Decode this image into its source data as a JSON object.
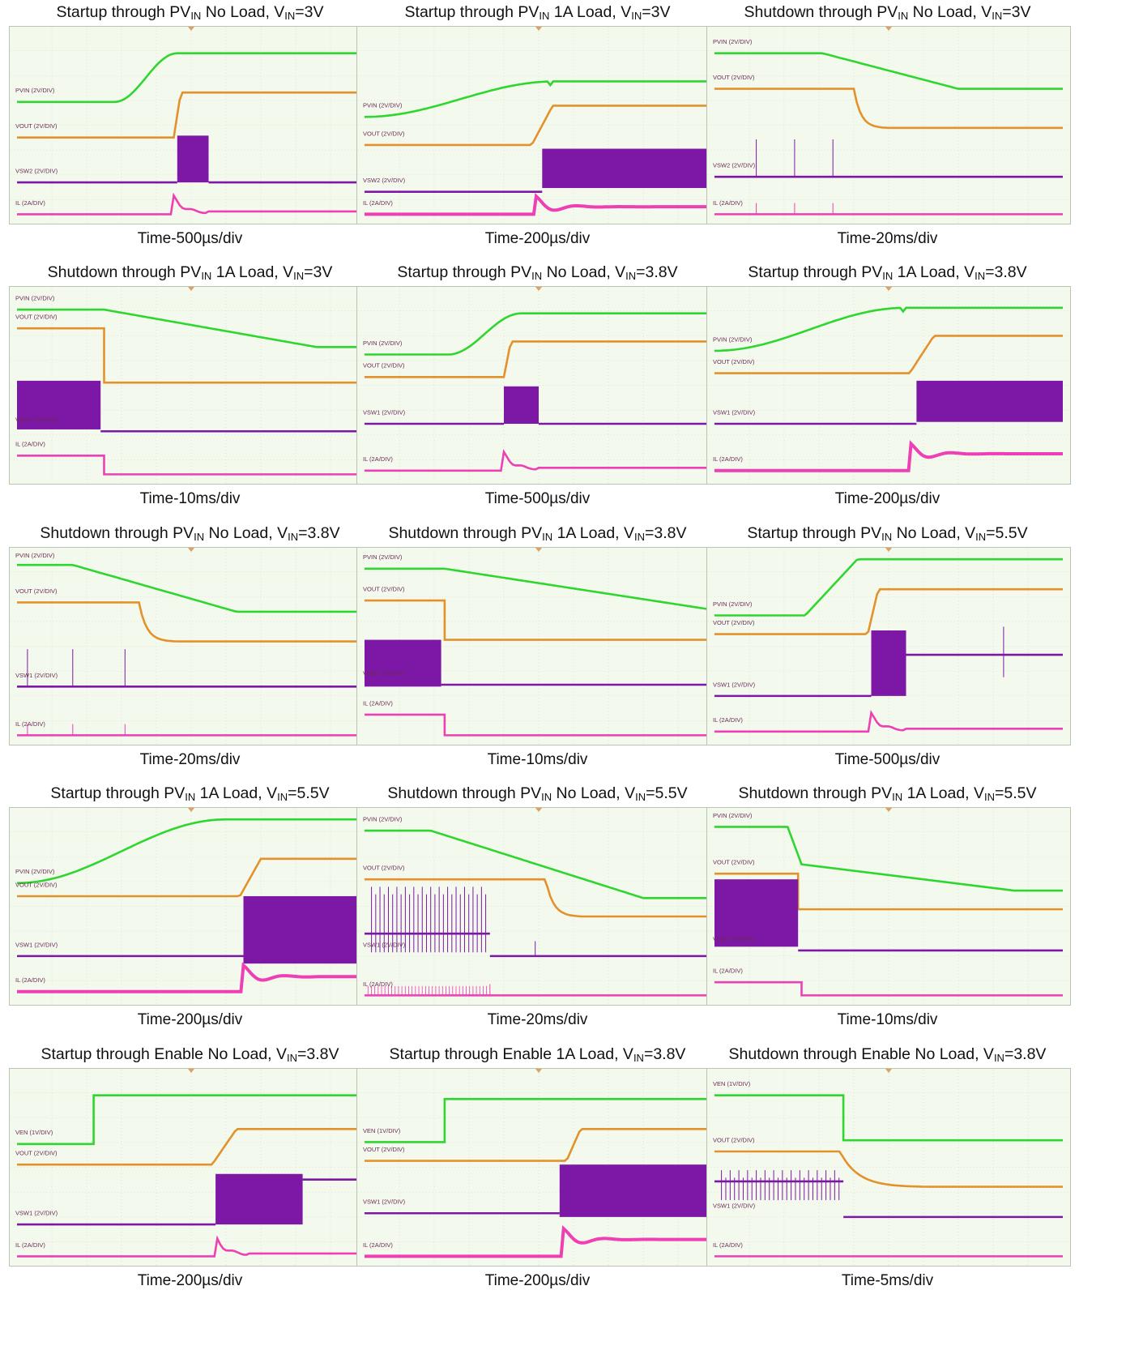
{
  "grid": {
    "bg": "#f4f9ee",
    "border": "#b9c4b2",
    "line": "#d6dfcd",
    "dot": "#cdd6c4",
    "marker": "#e0a060",
    "label_color": "#6a2a55"
  },
  "colors": {
    "PVIN": "#2fd62f",
    "VEN": "#2fd62f",
    "VOUT": "#e3922b",
    "VSW1": "#7d18a6",
    "VSW2": "#7d18a6",
    "IL": "#ee3fb4"
  },
  "panels": [
    {
      "pre": "Startup through PV",
      "sub": "IN",
      "mid": " No Load, V",
      "sub2": "IN",
      "post": "=3V",
      "time": "Time-500µs/div",
      "traces": [
        {
          "sig": "PVIN",
          "label": "PVIN (2V/DIV)",
          "kind": "rise",
          "y0": 0.38,
          "y1": 0.12,
          "t0": 0.28,
          "t1": 0.46,
          "shape": "smooth"
        },
        {
          "sig": "VOUT",
          "label": "VOUT (2V/DIV)",
          "kind": "rise",
          "y0": 0.57,
          "y1": 0.33,
          "t0": 0.45,
          "t1": 0.47,
          "shape": "lin"
        },
        {
          "sig": "VSW2",
          "label": "VSW2 (2V/DIV)",
          "kind": "burst",
          "y": 0.81,
          "top": 0.56,
          "t0": 0.46,
          "t1": 0.55
        },
        {
          "sig": "IL",
          "label": "IL (2A/DIV)",
          "kind": "spike",
          "y": 0.98,
          "t": 0.45,
          "h": 0.1
        }
      ]
    },
    {
      "pre": "Startup through PV",
      "sub": "IN",
      "mid": " 1A Load, V",
      "sub2": "IN",
      "post": "=3V",
      "time": "Time-200µs/div",
      "traces": [
        {
          "sig": "PVIN",
          "label": "PVIN (2V/DIV)",
          "kind": "rise",
          "y0": 0.46,
          "y1": 0.27,
          "t0": 0.0,
          "t1": 0.55,
          "shape": "smooth",
          "notch": 0.53
        },
        {
          "sig": "VOUT",
          "label": "VOUT (2V/DIV)",
          "kind": "rise",
          "y0": 0.61,
          "y1": 0.4,
          "t0": 0.48,
          "t1": 0.54,
          "shape": "lin"
        },
        {
          "sig": "VSW2",
          "label": "VSW2 (2V/DIV)",
          "kind": "step-band",
          "y": 0.86,
          "top": 0.63,
          "bot": 0.84,
          "t0": 0.51,
          "t1": 1.0
        },
        {
          "sig": "IL",
          "label": "IL (2A/DIV)",
          "kind": "load",
          "y": 0.98,
          "y2": 0.94,
          "t": 0.49
        }
      ]
    },
    {
      "pre": "Shutdown through PV",
      "sub": "IN",
      "mid": " No Load, V",
      "sub2": "IN",
      "post": "=3V",
      "time": "Time-20ms/div",
      "traces": [
        {
          "sig": "PVIN",
          "label": "PVIN (2V/DIV)",
          "kind": "fall",
          "y0": 0.12,
          "y1": 0.31,
          "t0": 0.31,
          "t1": 0.7,
          "shape": "lin"
        },
        {
          "sig": "VOUT",
          "label": "VOUT (2V/DIV)",
          "kind": "fall",
          "y0": 0.31,
          "y1": 0.52,
          "t0": 0.4,
          "t1": 0.5,
          "shape": "exp"
        },
        {
          "sig": "VSW2",
          "label": "VSW2 (2V/DIV)",
          "kind": "flat",
          "y": 0.78,
          "spikes": [
            0.12,
            0.23,
            0.34
          ],
          "sh": 0.2
        },
        {
          "sig": "IL",
          "label": "IL (2A/DIV)",
          "kind": "flat",
          "y": 0.98,
          "spikes": [
            0.12,
            0.23,
            0.34
          ],
          "sh": 0.06
        }
      ]
    },
    {
      "pre": "Shutdown through PV",
      "sub": "IN",
      "mid": " 1A Load, V",
      "sub2": "IN",
      "post": "=3V",
      "time": "Time-10ms/div",
      "traces": [
        {
          "sig": "PVIN",
          "label": "PVIN (2V/DIV)",
          "kind": "fall",
          "y0": 0.1,
          "y1": 0.3,
          "t0": 0.25,
          "t1": 0.86,
          "shape": "lin"
        },
        {
          "sig": "VOUT",
          "label": "VOUT (2V/DIV)",
          "kind": "drop",
          "y0": 0.2,
          "y1": 0.49,
          "t": 0.25
        },
        {
          "sig": "VSW2",
          "label": "VSW2 (2V/DIV)",
          "kind": "band-end",
          "y": 0.75,
          "top": 0.48,
          "bot": 0.74,
          "t": 0.24
        },
        {
          "sig": "IL",
          "label": "IL (2A/DIV)",
          "kind": "drop",
          "y0": 0.88,
          "y1": 0.98,
          "t": 0.25
        }
      ]
    },
    {
      "pre": "Startup through PV",
      "sub": "IN",
      "mid": " No Load, V",
      "sub2": "IN",
      "post": "=3.8V",
      "time": "Time-500µs/div",
      "traces": [
        {
          "sig": "PVIN",
          "label": "PVIN (2V/DIV)",
          "kind": "rise",
          "y0": 0.34,
          "y1": 0.12,
          "t0": 0.24,
          "t1": 0.45,
          "shape": "smooth"
        },
        {
          "sig": "VOUT",
          "label": "VOUT (2V/DIV)",
          "kind": "rise",
          "y0": 0.46,
          "y1": 0.27,
          "t0": 0.4,
          "t1": 0.42,
          "shape": "lin"
        },
        {
          "sig": "VSW1",
          "label": "VSW1 (2V/DIV)",
          "kind": "burst",
          "y": 0.71,
          "top": 0.51,
          "t0": 0.4,
          "t1": 0.5
        },
        {
          "sig": "IL",
          "label": "IL (2A/DIV)",
          "kind": "spike",
          "y": 0.96,
          "t": 0.4,
          "h": 0.1
        }
      ]
    },
    {
      "pre": "Startup through PV",
      "sub": "IN",
      "mid": " 1A Load, V",
      "sub2": "IN",
      "post": "=3.8V",
      "time": "Time-200µs/div",
      "traces": [
        {
          "sig": "PVIN",
          "label": "PVIN (2V/DIV)",
          "kind": "rise",
          "y0": 0.32,
          "y1": 0.09,
          "t0": 0.0,
          "t1": 0.55,
          "shape": "smooth",
          "notch": 0.54
        },
        {
          "sig": "VOUT",
          "label": "VOUT (2V/DIV)",
          "kind": "rise",
          "y0": 0.44,
          "y1": 0.24,
          "t0": 0.56,
          "t1": 0.63,
          "shape": "lin"
        },
        {
          "sig": "VSW1",
          "label": "VSW1 (2V/DIV)",
          "kind": "step-band",
          "y": 0.71,
          "top": 0.48,
          "bot": 0.7,
          "t0": 0.58,
          "t1": 1.0
        },
        {
          "sig": "IL",
          "label": "IL (2A/DIV)",
          "kind": "load",
          "y": 0.96,
          "y2": 0.87,
          "t": 0.56
        }
      ]
    },
    {
      "pre": "Shutdown through PV",
      "sub": "IN",
      "mid": " No Load, V",
      "sub2": "IN",
      "post": "=3.8V",
      "time": "Time-20ms/div",
      "traces": [
        {
          "sig": "PVIN",
          "label": "PVIN (2V/DIV)",
          "kind": "fall",
          "y0": 0.07,
          "y1": 0.32,
          "t0": 0.16,
          "t1": 0.63,
          "shape": "lin"
        },
        {
          "sig": "VOUT",
          "label": "VOUT (2V/DIV)",
          "kind": "fall",
          "y0": 0.27,
          "y1": 0.48,
          "t0": 0.35,
          "t1": 0.46,
          "shape": "exp"
        },
        {
          "sig": "VSW1",
          "label": "VSW1 (2V/DIV)",
          "kind": "flat",
          "y": 0.72,
          "spikes": [
            0.03,
            0.16,
            0.31
          ],
          "sh": 0.2
        },
        {
          "sig": "IL",
          "label": "IL (2A/DIV)",
          "kind": "flat",
          "y": 0.98,
          "spikes": [
            0.03,
            0.16,
            0.31
          ],
          "sh": 0.06
        }
      ]
    },
    {
      "pre": "Shutdown through PV",
      "sub": "IN",
      "mid": " 1A Load, V",
      "sub2": "IN",
      "post": "=3.8V",
      "time": "Time-10ms/div",
      "traces": [
        {
          "sig": "PVIN",
          "label": "PVIN (2V/DIV)",
          "kind": "fall",
          "y0": 0.09,
          "y1": 0.31,
          "t0": 0.23,
          "t1": 1.0,
          "shape": "lin"
        },
        {
          "sig": "VOUT",
          "label": "VOUT (2V/DIV)",
          "kind": "drop",
          "y0": 0.26,
          "y1": 0.47,
          "t": 0.23
        },
        {
          "sig": "VSW1",
          "label": "VSW1 (2V/DIV)",
          "kind": "band-end",
          "y": 0.71,
          "top": 0.47,
          "bot": 0.72,
          "t": 0.22
        },
        {
          "sig": "IL",
          "label": "IL (2A/DIV)",
          "kind": "drop",
          "y0": 0.87,
          "y1": 0.98,
          "t": 0.23
        }
      ]
    },
    {
      "pre": "Startup through PV",
      "sub": "IN",
      "mid": " No Load, V",
      "sub2": "IN",
      "post": "=5.5V",
      "time": "Time-500µs/div",
      "traces": [
        {
          "sig": "PVIN",
          "label": "PVIN (2V/DIV)",
          "kind": "rise",
          "y0": 0.34,
          "y1": 0.04,
          "t0": 0.26,
          "t1": 0.41,
          "shape": "ramp"
        },
        {
          "sig": "VOUT",
          "label": "VOUT (2V/DIV)",
          "kind": "rise",
          "y0": 0.44,
          "y1": 0.2,
          "t0": 0.44,
          "t1": 0.47,
          "shape": "lin"
        },
        {
          "sig": "VSW1",
          "label": "VSW1 (2V/DIV)",
          "kind": "burst-hold",
          "y": 0.77,
          "top": 0.42,
          "hold": 0.55,
          "t0": 0.45,
          "t1": 0.55,
          "spike": 0.83
        },
        {
          "sig": "IL",
          "label": "IL (2A/DIV)",
          "kind": "spike",
          "y": 0.96,
          "t": 0.45,
          "h": 0.1
        }
      ]
    },
    {
      "pre": "Startup through PV",
      "sub": "IN",
      "mid": " 1A Load, V",
      "sub2": "IN",
      "post": "=5.5V",
      "time": "Time-200µs/div",
      "traces": [
        {
          "sig": "PVIN",
          "label": "PVIN (2V/DIV)",
          "kind": "rise",
          "y0": 0.38,
          "y1": 0.04,
          "t0": 0.0,
          "t1": 0.6,
          "shape": "smooth"
        },
        {
          "sig": "VOUT",
          "label": "VOUT (2V/DIV)",
          "kind": "rise",
          "y0": 0.45,
          "y1": 0.25,
          "t0": 0.64,
          "t1": 0.7,
          "shape": "lin"
        },
        {
          "sig": "VSW1",
          "label": "VSW1 (2V/DIV)",
          "kind": "step-band",
          "y": 0.77,
          "top": 0.45,
          "bot": 0.81,
          "t0": 0.65,
          "t1": 1.0
        },
        {
          "sig": "IL",
          "label": "IL (2A/DIV)",
          "kind": "load",
          "y": 0.96,
          "y2": 0.88,
          "t": 0.65
        }
      ]
    },
    {
      "pre": "Shutdown through PV",
      "sub": "IN",
      "mid": " No Load, V",
      "sub2": "IN",
      "post": "=5.5V",
      "time": "Time-20ms/div",
      "traces": [
        {
          "sig": "PVIN",
          "label": "PVIN (2V/DIV)",
          "kind": "fall",
          "y0": 0.1,
          "y1": 0.46,
          "t0": 0.19,
          "t1": 0.8,
          "shape": "lin"
        },
        {
          "sig": "VOUT",
          "label": "VOUT (2V/DIV)",
          "kind": "fall",
          "y0": 0.36,
          "y1": 0.56,
          "t0": 0.52,
          "t1": 0.63,
          "shape": "exp"
        },
        {
          "sig": "VSW1",
          "label": "VSW1 (2V/DIV)",
          "kind": "ring",
          "y": 0.77,
          "top": 0.4,
          "t1": 0.36,
          "spike": 0.49
        },
        {
          "sig": "IL",
          "label": "IL (2A/DIV)",
          "kind": "flat",
          "y": 0.98,
          "ring": 0.36,
          "spikes": [
            0.36
          ],
          "sh": 0.06
        }
      ]
    },
    {
      "pre": "Shutdown through PV",
      "sub": "IN",
      "mid": " 1A Load, V",
      "sub2": "IN",
      "post": "=5.5V",
      "time": "Time-10ms/div",
      "traces": [
        {
          "sig": "PVIN",
          "label": "PVIN (2V/DIV)",
          "kind": "fall2",
          "y0": 0.08,
          "y1": 0.28,
          "y2": 0.42,
          "t0": 0.21,
          "t1": 0.25,
          "t2": 0.86
        },
        {
          "sig": "VOUT",
          "label": "VOUT (2V/DIV)",
          "kind": "drop",
          "y0": 0.33,
          "y1": 0.52,
          "t": 0.24
        },
        {
          "sig": "VSW1",
          "label": "VSW1 (2V/DIV)",
          "kind": "band-end",
          "y": 0.74,
          "top": 0.36,
          "bot": 0.72,
          "t": 0.24
        },
        {
          "sig": "IL",
          "label": "IL (2A/DIV)",
          "kind": "drop",
          "y0": 0.91,
          "y1": 0.98,
          "t": 0.25
        }
      ]
    },
    {
      "pre": "Startup through Enable No Load, V",
      "sub": "",
      "mid": "",
      "sub2": "IN",
      "post": "=3.8V",
      "time": "Time-200µs/div",
      "traces": [
        {
          "sig": "VEN",
          "label": "VEN (1V/DIV)",
          "kind": "step",
          "y0": 0.38,
          "y1": 0.12,
          "t": 0.22
        },
        {
          "sig": "VOUT",
          "label": "VOUT (2V/DIV)",
          "kind": "rise",
          "y0": 0.49,
          "y1": 0.3,
          "t0": 0.56,
          "t1": 0.63,
          "shape": "lin"
        },
        {
          "sig": "VSW1",
          "label": "VSW1 (2V/DIV)",
          "kind": "burst-hold",
          "y": 0.81,
          "top": 0.54,
          "hold": 0.57,
          "t0": 0.57,
          "t1": 0.82
        },
        {
          "sig": "IL",
          "label": "IL (2A/DIV)",
          "kind": "spike",
          "y": 0.98,
          "t": 0.57,
          "h": 0.11
        }
      ]
    },
    {
      "pre": "Startup through Enable 1A Load, V",
      "sub": "",
      "mid": "",
      "sub2": "IN",
      "post": "=3.8V",
      "time": "Time-200µs/div",
      "traces": [
        {
          "sig": "VEN",
          "label": "VEN (1V/DIV)",
          "kind": "step",
          "y0": 0.37,
          "y1": 0.14,
          "t": 0.23
        },
        {
          "sig": "VOUT",
          "label": "VOUT (2V/DIV)",
          "kind": "rise",
          "y0": 0.47,
          "y1": 0.3,
          "t0": 0.58,
          "t1": 0.62,
          "shape": "lin"
        },
        {
          "sig": "VSW1",
          "label": "VSW1 (2V/DIV)",
          "kind": "step-band",
          "y": 0.75,
          "top": 0.49,
          "bot": 0.77,
          "t0": 0.56,
          "t1": 1.0
        },
        {
          "sig": "IL",
          "label": "IL (2A/DIV)",
          "kind": "load",
          "y": 0.98,
          "y2": 0.89,
          "t": 0.57
        }
      ]
    },
    {
      "pre": "Shutdown through Enable No Load, V",
      "sub": "",
      "mid": "",
      "sub2": "IN",
      "post": "=3.8V",
      "time": "Time-5ms/div",
      "traces": [
        {
          "sig": "VEN",
          "label": "VEN (1V/DIV)",
          "kind": "step",
          "y0": 0.12,
          "y1": 0.36,
          "t": 0.37
        },
        {
          "sig": "VOUT",
          "label": "VOUT (2V/DIV)",
          "kind": "fall",
          "y0": 0.42,
          "y1": 0.61,
          "t0": 0.36,
          "t1": 0.62,
          "shape": "exp"
        },
        {
          "sig": "VSW1",
          "label": "VSW1 (2V/DIV)",
          "kind": "ring",
          "y": 0.77,
          "top": 0.52,
          "hold": 0.58,
          "t0": 0.0,
          "t1": 0.37
        },
        {
          "sig": "IL",
          "label": "IL (2A/DIV)",
          "kind": "flat",
          "y": 0.98
        }
      ]
    }
  ]
}
